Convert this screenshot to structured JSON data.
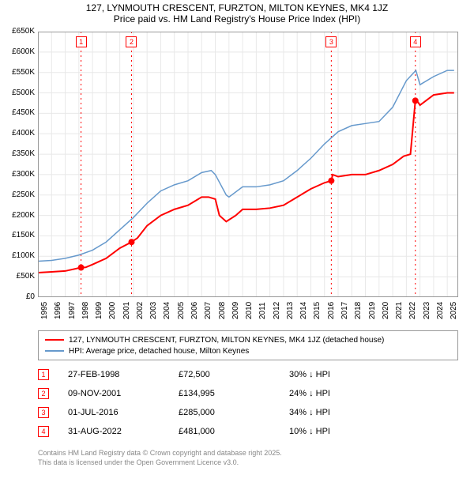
{
  "title_line1": "127, LYNMOUTH CRESCENT, FURZTON, MILTON KEYNES, MK4 1JZ",
  "title_line2": "Price paid vs. HM Land Registry's House Price Index (HPI)",
  "chart": {
    "type": "line",
    "background_color": "#ffffff",
    "grid_color": "#e8e8e8",
    "axis_color": "#999999",
    "x_min": 1995,
    "x_max": 2025.8,
    "y_min": 0,
    "y_max": 650000,
    "y_ticks": [
      0,
      50000,
      100000,
      150000,
      200000,
      250000,
      300000,
      350000,
      400000,
      450000,
      500000,
      550000,
      600000,
      650000
    ],
    "y_tick_labels": [
      "£0",
      "£50K",
      "£100K",
      "£150K",
      "£200K",
      "£250K",
      "£300K",
      "£350K",
      "£400K",
      "£450K",
      "£500K",
      "£550K",
      "£600K",
      "£650K"
    ],
    "x_ticks": [
      1995,
      1996,
      1997,
      1998,
      1999,
      2000,
      2001,
      2002,
      2003,
      2004,
      2005,
      2006,
      2007,
      2008,
      2009,
      2010,
      2011,
      2012,
      2013,
      2014,
      2015,
      2016,
      2017,
      2018,
      2019,
      2020,
      2021,
      2022,
      2023,
      2024,
      2025
    ],
    "series": [
      {
        "name": "property",
        "color": "#ff0000",
        "width": 2,
        "data": [
          [
            1995,
            60000
          ],
          [
            1996,
            62000
          ],
          [
            1997,
            64000
          ],
          [
            1998.16,
            72500
          ],
          [
            1998.5,
            73000
          ],
          [
            1999,
            80000
          ],
          [
            2000,
            95000
          ],
          [
            2001,
            120000
          ],
          [
            2001.86,
            134995
          ],
          [
            2002.3,
            145000
          ],
          [
            2003,
            175000
          ],
          [
            2004,
            200000
          ],
          [
            2005,
            215000
          ],
          [
            2006,
            225000
          ],
          [
            2007,
            245000
          ],
          [
            2007.5,
            245000
          ],
          [
            2008,
            240000
          ],
          [
            2008.3,
            200000
          ],
          [
            2008.8,
            185000
          ],
          [
            2009.5,
            200000
          ],
          [
            2010,
            215000
          ],
          [
            2011,
            215000
          ],
          [
            2012,
            218000
          ],
          [
            2013,
            225000
          ],
          [
            2014,
            245000
          ],
          [
            2015,
            265000
          ],
          [
            2016,
            280000
          ],
          [
            2016.5,
            285000
          ],
          [
            2016.6,
            300000
          ],
          [
            2017,
            295000
          ],
          [
            2018,
            300000
          ],
          [
            2019,
            300000
          ],
          [
            2020,
            310000
          ],
          [
            2021,
            325000
          ],
          [
            2021.8,
            345000
          ],
          [
            2022.3,
            350000
          ],
          [
            2022.66,
            481000
          ],
          [
            2022.7,
            485000
          ],
          [
            2023,
            470000
          ],
          [
            2024,
            495000
          ],
          [
            2025,
            500000
          ],
          [
            2025.5,
            500000
          ]
        ]
      },
      {
        "name": "hpi",
        "color": "#6699cc",
        "width": 1.5,
        "data": [
          [
            1995,
            88000
          ],
          [
            1996,
            90000
          ],
          [
            1997,
            95000
          ],
          [
            1998,
            103000
          ],
          [
            1999,
            115000
          ],
          [
            2000,
            135000
          ],
          [
            2001,
            165000
          ],
          [
            2002,
            195000
          ],
          [
            2003,
            230000
          ],
          [
            2004,
            260000
          ],
          [
            2005,
            275000
          ],
          [
            2006,
            285000
          ],
          [
            2007,
            305000
          ],
          [
            2007.7,
            310000
          ],
          [
            2008,
            300000
          ],
          [
            2008.8,
            250000
          ],
          [
            2009,
            245000
          ],
          [
            2010,
            270000
          ],
          [
            2011,
            270000
          ],
          [
            2012,
            275000
          ],
          [
            2013,
            285000
          ],
          [
            2014,
            310000
          ],
          [
            2015,
            340000
          ],
          [
            2016,
            375000
          ],
          [
            2017,
            405000
          ],
          [
            2018,
            420000
          ],
          [
            2019,
            425000
          ],
          [
            2020,
            430000
          ],
          [
            2021,
            465000
          ],
          [
            2022,
            530000
          ],
          [
            2022.7,
            555000
          ],
          [
            2023,
            520000
          ],
          [
            2024,
            540000
          ],
          [
            2025,
            555000
          ],
          [
            2025.5,
            555000
          ]
        ]
      }
    ],
    "sale_markers": [
      {
        "n": "1",
        "x": 1998.16,
        "marker_top": 6
      },
      {
        "n": "2",
        "x": 2001.86,
        "marker_top": 6
      },
      {
        "n": "3",
        "x": 2016.5,
        "marker_top": 6
      },
      {
        "n": "4",
        "x": 2022.66,
        "marker_top": 6
      }
    ]
  },
  "legend": {
    "items": [
      {
        "color": "#ff0000",
        "width": 2,
        "label": "127, LYNMOUTH CRESCENT, FURZTON, MILTON KEYNES, MK4 1JZ (detached house)"
      },
      {
        "color": "#6699cc",
        "width": 1.5,
        "label": "HPI: Average price, detached house, Milton Keynes"
      }
    ]
  },
  "sales": [
    {
      "n": "1",
      "date": "27-FEB-1998",
      "price": "£72,500",
      "pct": "30% ↓ HPI"
    },
    {
      "n": "2",
      "date": "09-NOV-2001",
      "price": "£134,995",
      "pct": "24% ↓ HPI"
    },
    {
      "n": "3",
      "date": "01-JUL-2016",
      "price": "£285,000",
      "pct": "34% ↓ HPI"
    },
    {
      "n": "4",
      "date": "31-AUG-2022",
      "price": "£481,000",
      "pct": "10% ↓ HPI"
    }
  ],
  "footer_line1": "Contains HM Land Registry data © Crown copyright and database right 2025.",
  "footer_line2": "This data is licensed under the Open Government Licence v3.0."
}
